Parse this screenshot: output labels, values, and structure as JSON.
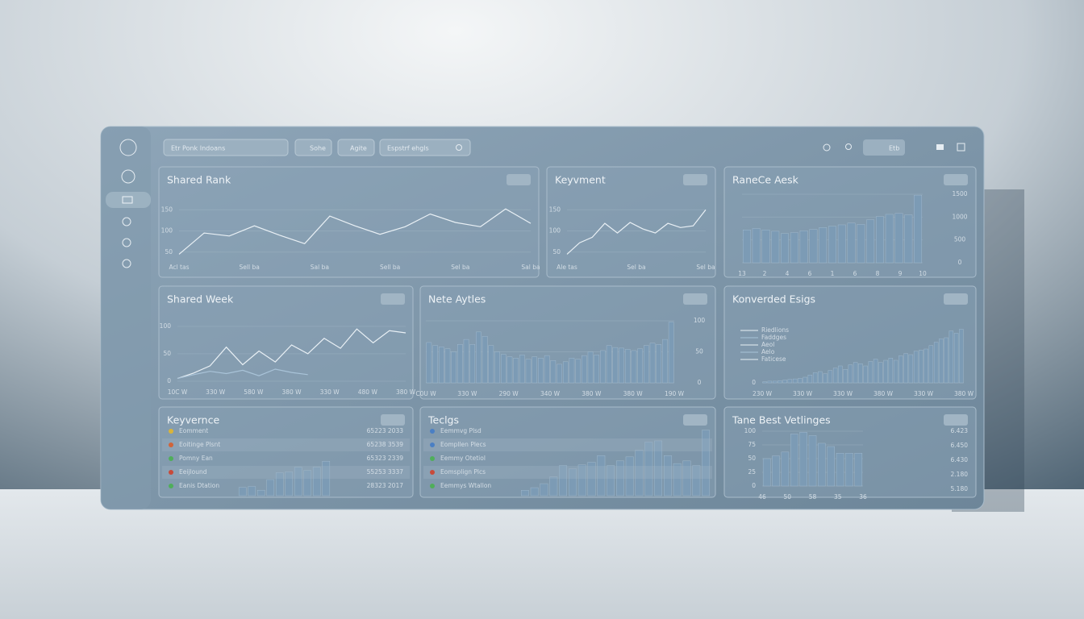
{
  "topbar": {
    "dropdown": "Etr Ponk Indoans",
    "buttons": [
      "Sohe",
      "Agite"
    ],
    "search": "Espstrf ehgls",
    "toggle": "Etb"
  },
  "panels": [
    {
      "title": "Shared Rank",
      "chart": {
        "type": "line",
        "axis_side": "left",
        "ylim": [
          40,
          160
        ],
        "yticks": [
          50,
          100,
          150
        ],
        "series": [
          {
            "color": "#e9f0f5",
            "values": [
              45,
              95,
              88,
              112,
              90,
              70,
              135,
              112,
              92,
              110,
              140,
              120,
              110,
              152,
              118
            ]
          }
        ],
        "x_labels": [
          "Acl tas",
          "Sell ba",
          "Sal ba",
          "Sell ba",
          "Sel ba",
          "Sal ba"
        ]
      }
    },
    {
      "title": "Keyvment",
      "chart": {
        "type": "line",
        "axis_side": "left",
        "ylim": [
          40,
          160
        ],
        "yticks": [
          50,
          100,
          150
        ],
        "series": [
          {
            "color": "#e9f0f5",
            "values": [
              45,
              72,
              85,
              118,
              95,
              120,
              105,
              95,
              118,
              108,
              112,
              150
            ]
          }
        ],
        "x_labels": [
          "Ale tas",
          "Sel ba",
          "Sel ba"
        ]
      }
    },
    {
      "title": "RaneCe Aesk",
      "chart": {
        "type": "bar",
        "axis_side": "right",
        "ylim": [
          0,
          1500
        ],
        "yticks": [
          0,
          500,
          1000,
          1500
        ],
        "series": [
          {
            "color": "#7c9bb5",
            "values": [
              720,
              750,
              720,
              690,
              640,
              660,
              700,
              730,
              770,
              800,
              830,
              870,
              840,
              940,
              1010,
              1060,
              1080,
              1050,
              1480
            ]
          }
        ],
        "x_labels": [
          "13",
          "2",
          "4",
          "6",
          "1",
          "6",
          "8",
          "9",
          "10"
        ]
      }
    },
    {
      "title": "Shared Week",
      "chart": {
        "type": "line",
        "axis_side": "left",
        "ylim": [
          0,
          110
        ],
        "yticks": [
          0,
          50,
          100
        ],
        "series": [
          {
            "color": "#e9f0f5",
            "values": [
              5,
              15,
              28,
              62,
              30,
              55,
              35,
              66,
              50,
              78,
              60,
              95,
              70,
              92,
              88
            ]
          },
          {
            "color": "#a9c3d8",
            "values": [
              5,
              12,
              18,
              14,
              20,
              10,
              22,
              16,
              12
            ]
          }
        ],
        "x_labels": [
          "10C W",
          "330 W",
          "580 W",
          "380 W",
          "330 W",
          "480 W",
          "380 W"
        ]
      }
    },
    {
      "title": "Nete Aytles",
      "chart": {
        "type": "bar",
        "axis_side": "right",
        "ylim": [
          0,
          100
        ],
        "yticks": [
          0,
          50,
          100
        ],
        "series": [
          {
            "color": "#7c9bb5",
            "values": [
              65,
              60,
              58,
              55,
              50,
              62,
              70,
              62,
              82,
              75,
              60,
              50,
              46,
              42,
              40,
              45,
              38,
              42,
              40,
              44,
              36,
              30,
              34,
              40,
              38,
              44,
              50,
              45,
              52,
              60,
              57,
              56,
              54,
              52,
              55,
              60,
              64,
              62,
              70,
              98
            ]
          }
        ],
        "x_labels": [
          "C0U W",
          "330 W",
          "290 W",
          "340 W",
          "380 W",
          "380 W",
          "190 W"
        ]
      }
    },
    {
      "title": "Konverded Esigs",
      "chart": {
        "type": "bar",
        "axis_side": "left",
        "ylim": [
          0,
          100
        ],
        "yticks": [
          0
        ],
        "legend": [
          "Riedlions",
          "Faddges",
          "Aeol",
          "Aelo",
          "Faticese"
        ],
        "series": [
          {
            "color": "#7c9bb5",
            "values": [
              2,
              3,
              3,
              4,
              5,
              6,
              7,
              8,
              10,
              14,
              18,
              20,
              16,
              22,
              26,
              30,
              24,
              32,
              36,
              34,
              30,
              38,
              42,
              36,
              40,
              44,
              40,
              48,
              52,
              50,
              56,
              58,
              60,
              66,
              72,
              78,
              80,
              92,
              88,
              95
            ]
          }
        ],
        "x_labels": [
          "230 W",
          "330 W",
          "330 W",
          "380 W",
          "330 W",
          "380 W"
        ]
      }
    },
    {
      "title": "Keyvernce",
      "rows": [
        {
          "dot": "#d9b43a",
          "label": "Eomment",
          "value": "65223 2033"
        },
        {
          "dot": "#d0643a",
          "label": "Eoitinge Plsnt",
          "value": "65238 3539"
        },
        {
          "dot": "#4fae5a",
          "label": "Pomny Ean",
          "value": "65323 2339"
        },
        {
          "dot": "#c84a3a",
          "label": "Eeijlound",
          "value": "55253 3337"
        },
        {
          "dot": "#4fae5a",
          "label": "Eanis Dtation",
          "value": "28323 2017"
        }
      ],
      "chart": {
        "type": "bar",
        "ylim": [
          0,
          100
        ],
        "yticks": [],
        "series": [
          {
            "color": "#7c9bb5",
            "values": [
              18,
              20,
              12,
              35,
              50,
              52,
              62,
              55,
              62,
              75
            ]
          }
        ],
        "x_labels": []
      }
    },
    {
      "title": "Teclgs",
      "rows": [
        {
          "dot": "#4a7fc4",
          "label": "Eemmvg Plsd",
          "value": ""
        },
        {
          "dot": "#4a7fc4",
          "label": "Eompllen Plecs",
          "value": ""
        },
        {
          "dot": "#4fae5a",
          "label": "Eemmy Otetiol",
          "value": ""
        },
        {
          "dot": "#c84a3a",
          "label": "Eomsplign Plcs",
          "value": ""
        },
        {
          "dot": "#4fae5a",
          "label": "Eemmys Wtallon",
          "value": ""
        }
      ],
      "chart": {
        "type": "bar",
        "ylim": [
          0,
          100
        ],
        "yticks": [],
        "series": [
          {
            "color": "#7c9bb5",
            "values": [
              8,
              12,
              18,
              28,
              45,
              40,
              46,
              50,
              60,
              45,
              52,
              58,
              68,
              80,
              82,
              60,
              48,
              52,
              45,
              98
            ]
          }
        ],
        "x_labels": []
      }
    },
    {
      "title": "Tane Best Vetlinges",
      "side_values": [
        "6.423",
        "6.450",
        "6.430",
        "2.180",
        "5.180"
      ],
      "chart": {
        "type": "bar",
        "axis_side": "left",
        "ylim": [
          0,
          100
        ],
        "yticks": [
          0,
          25,
          50,
          75,
          100
        ],
        "series": [
          {
            "color": "#7c9bb5",
            "values": [
              50,
              55,
              62,
              95,
              98,
              92,
              78,
              72,
              60,
              60,
              60
            ]
          }
        ],
        "x_labels": [
          "46",
          "50",
          "58",
          "35",
          "36"
        ]
      }
    }
  ]
}
